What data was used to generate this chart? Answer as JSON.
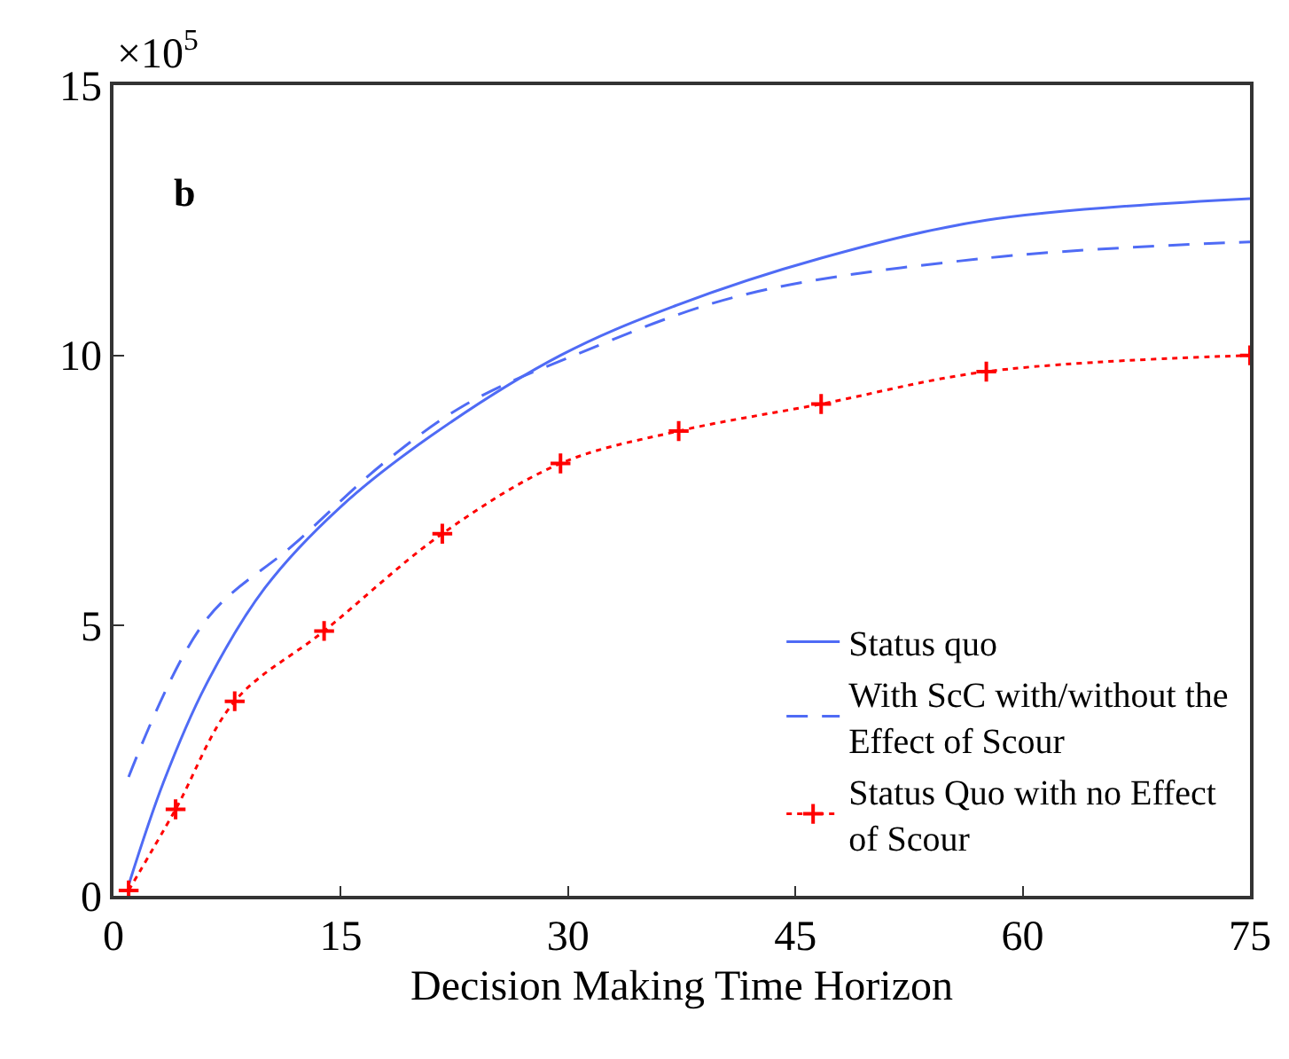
{
  "chart_data": {
    "type": "line",
    "xlabel": "Decision Making Time Horizon",
    "annotations": [
      "b",
      "×10$^{5}$"
    ],
    "xlim": [
      0,
      75
    ],
    "xticks": [
      0,
      15,
      30,
      45,
      60,
      75
    ],
    "ylim": [
      0,
      15
    ],
    "yticks": [
      0,
      5,
      10,
      15
    ],
    "grid": false,
    "legend": "bottom right",
    "series": [
      {
        "name": "Status quo",
        "color": "#4f6bf5",
        "line_style": "solid",
        "marker": "none",
        "x": [
          1,
          3.3,
          6.1,
          10,
          15,
          20.9,
          29.5,
          36.9,
          46.7,
          57.6,
          75
        ],
        "values": [
          0.2,
          2.1,
          3.9,
          5.7,
          7.2,
          8.5,
          10,
          10.9,
          11.8,
          12.5,
          12.9
        ]
      },
      {
        "name": "With ScC with/without the Effect of Scour",
        "color": "#4f6bf5",
        "line_style": "dashed",
        "marker": "none",
        "x": [
          1,
          6.1,
          11.9,
          17.8,
          23.3,
          30.4,
          41.3,
          57.6,
          75
        ],
        "values": [
          2.2,
          5.1,
          6.5,
          8,
          9.1,
          10,
          11.1,
          11.8,
          12.1
        ]
      },
      {
        "name": "Status Quo with no Effect of Scour",
        "color": "#ff0000",
        "line_style": "dotted",
        "marker": "cross",
        "x": [
          1,
          4.1,
          8,
          13.9,
          21.7,
          29.5,
          37.3,
          46.7,
          57.6,
          75
        ],
        "values": [
          0.1,
          1.6,
          3.6,
          4.9,
          6.7,
          8,
          8.6,
          9.1,
          9.7,
          10
        ]
      }
    ]
  }
}
